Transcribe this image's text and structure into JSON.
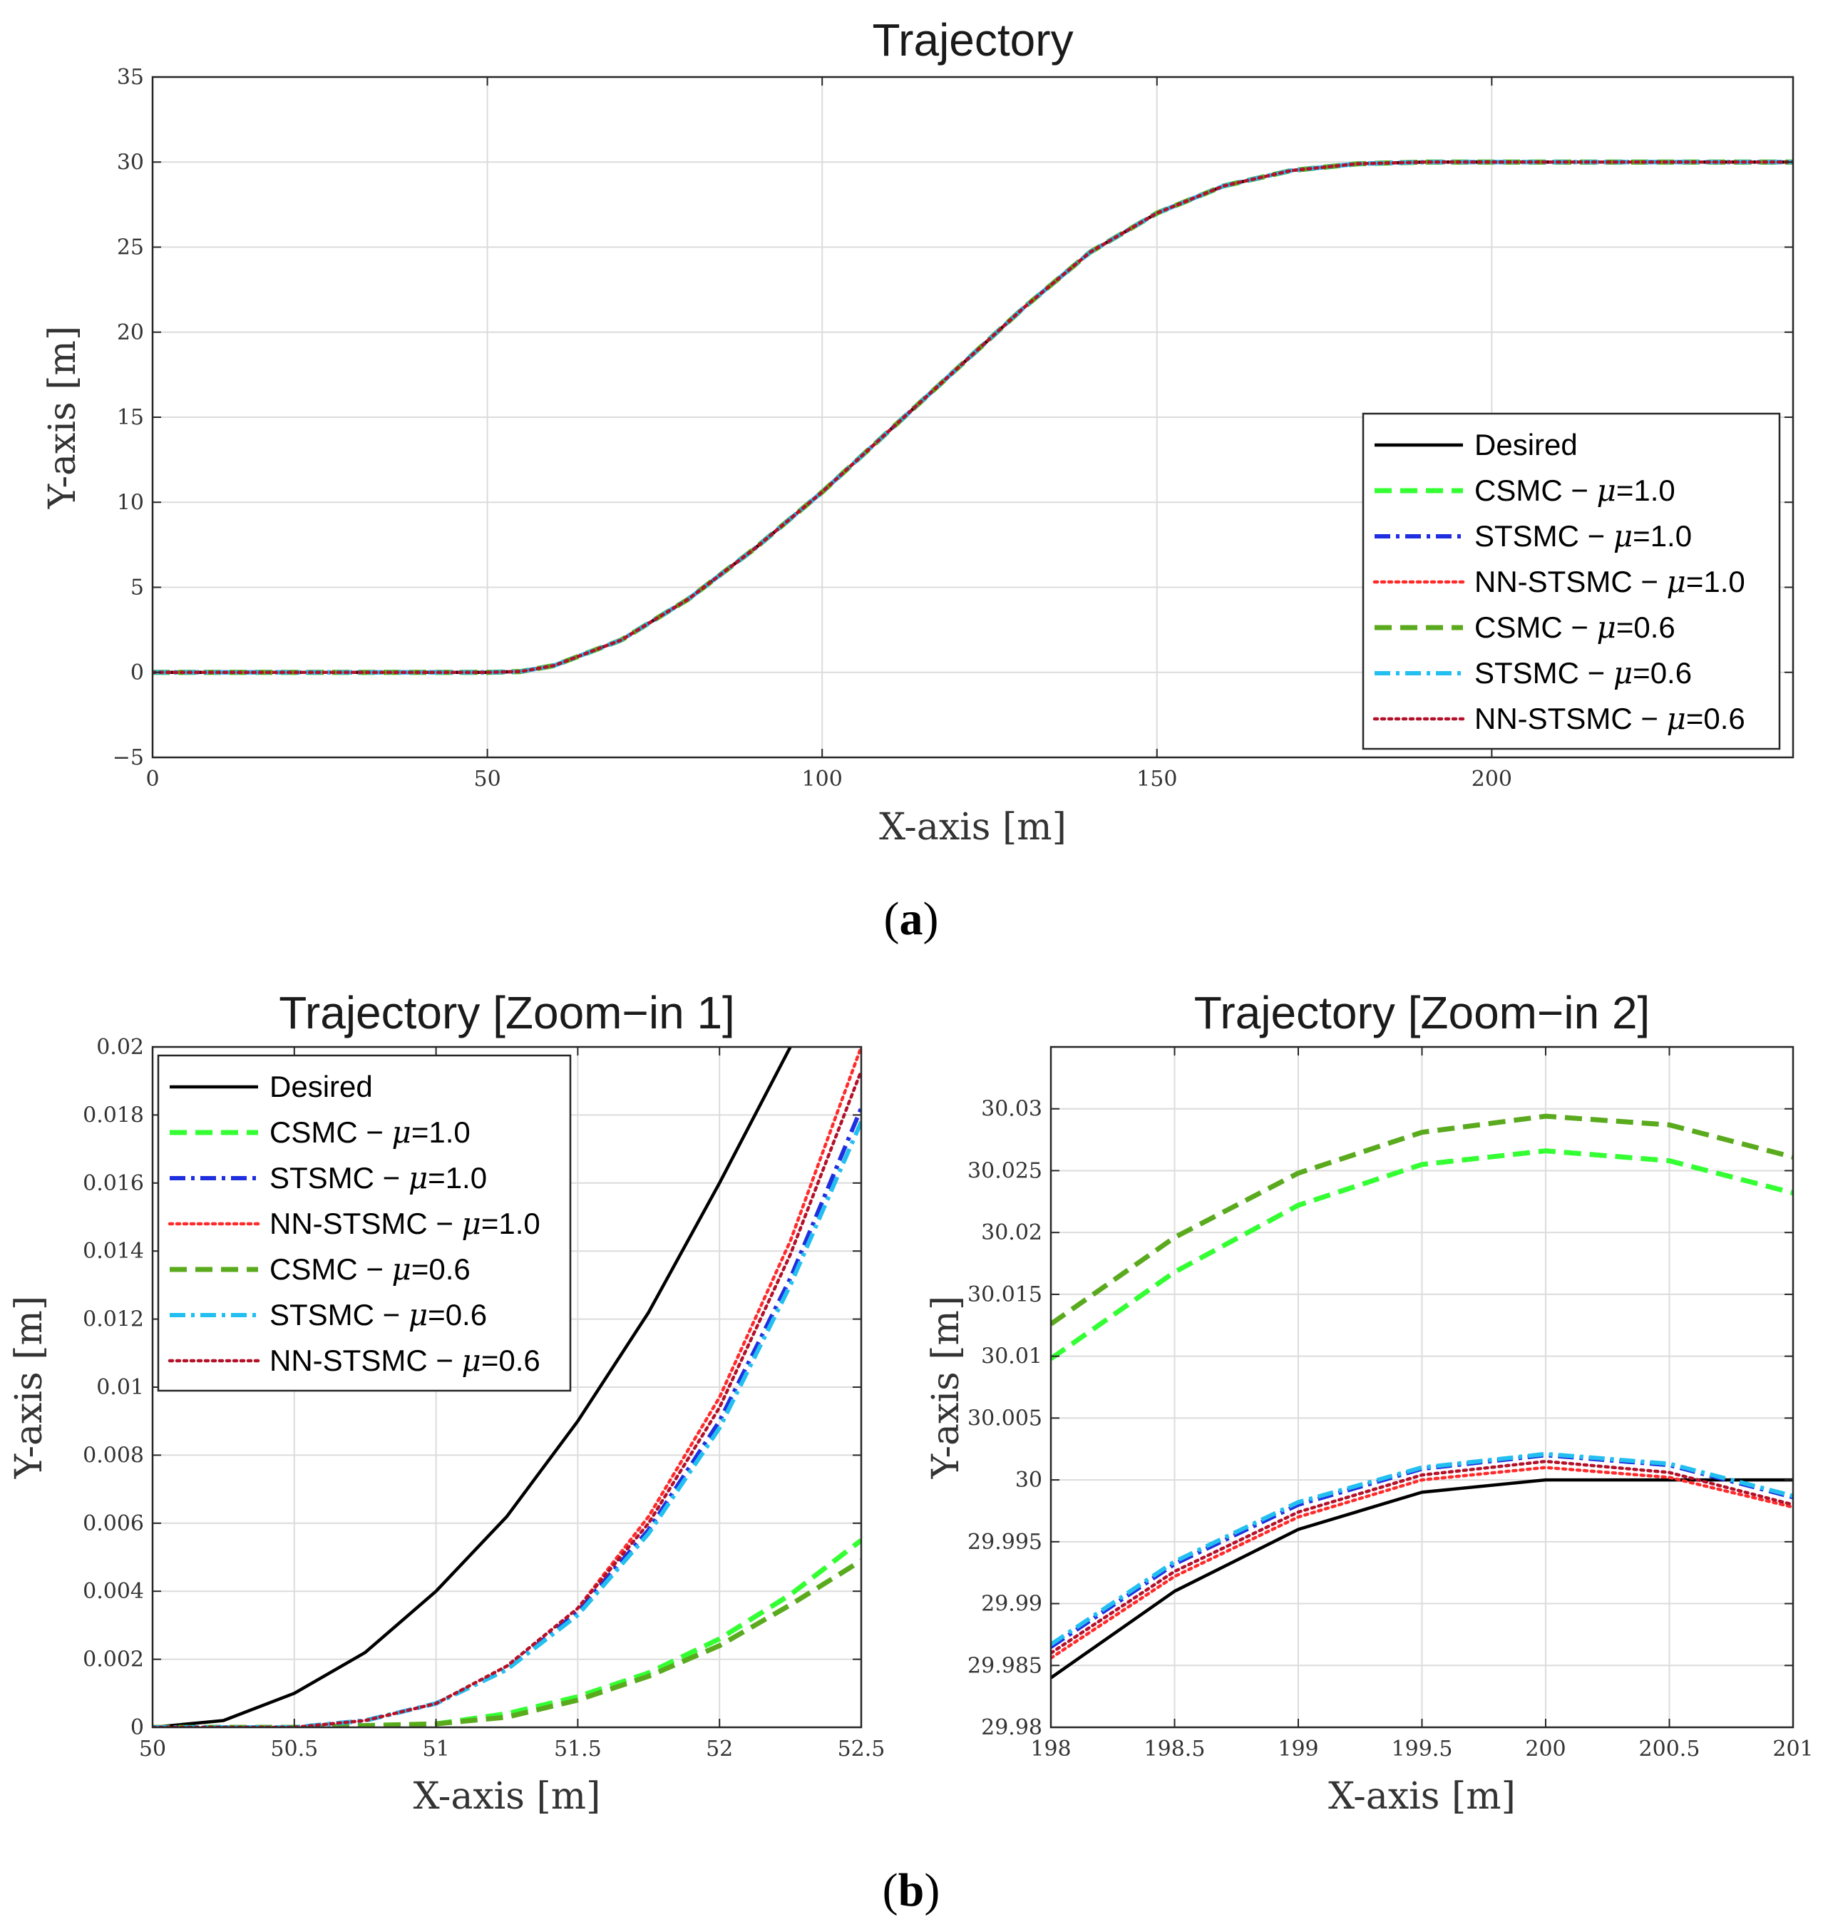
{
  "chart_data": [
    {
      "id": "a",
      "type": "line",
      "title": "Trajectory",
      "xlabel": "X-axis [m]",
      "ylabel": "Y-axis [m]",
      "xlim": [
        0,
        245
      ],
      "ylim": [
        -5,
        35
      ],
      "xticks": [
        0,
        50,
        100,
        150,
        200
      ],
      "yticks": [
        -5,
        0,
        5,
        10,
        15,
        20,
        25,
        30,
        35
      ],
      "xtick_labels": [
        "0",
        "50",
        "100",
        "150",
        "200"
      ],
      "ytick_labels": [
        "−5",
        "0",
        "5",
        "10",
        "15",
        "20",
        "25",
        "30",
        "35"
      ],
      "grid": true,
      "legend_position": "bottom-right",
      "caption": "a",
      "series": [
        {
          "name": "Desired",
          "color": "#000000",
          "style": "solid",
          "x": [
            0,
            50,
            55,
            60,
            70,
            80,
            90,
            100,
            110,
            120,
            125,
            130,
            140,
            150,
            160,
            170,
            180,
            190,
            195,
            200,
            245
          ],
          "y": [
            0,
            0,
            0.05,
            0.4,
            1.9,
            4.3,
            7.3,
            10.6,
            14.2,
            17.8,
            19.6,
            21.4,
            24.7,
            27.0,
            28.6,
            29.5,
            29.9,
            30.0,
            30.0,
            30.0,
            30.0
          ]
        },
        {
          "name": "CSMC − μ=1.0",
          "color": "#33ff33",
          "style": "dashed",
          "x": [
            0,
            50,
            55,
            60,
            70,
            80,
            90,
            100,
            110,
            120,
            125,
            130,
            140,
            150,
            160,
            170,
            180,
            190,
            195,
            200,
            245
          ],
          "y": [
            0,
            0,
            0.05,
            0.4,
            1.9,
            4.3,
            7.3,
            10.6,
            14.2,
            17.8,
            19.6,
            21.4,
            24.7,
            27.0,
            28.6,
            29.5,
            29.9,
            30.0,
            30.0,
            30.0,
            30.0
          ]
        },
        {
          "name": "STSMC − μ=1.0",
          "color": "#1f2fe0",
          "style": "dashdot",
          "x": [
            0,
            50,
            55,
            60,
            70,
            80,
            90,
            100,
            110,
            120,
            125,
            130,
            140,
            150,
            160,
            170,
            180,
            190,
            195,
            200,
            245
          ],
          "y": [
            0,
            0,
            0.05,
            0.4,
            1.9,
            4.3,
            7.3,
            10.6,
            14.2,
            17.8,
            19.6,
            21.4,
            24.7,
            27.0,
            28.6,
            29.5,
            29.9,
            30.0,
            30.0,
            30.0,
            30.0
          ]
        },
        {
          "name": "NN-STSMC − μ=1.0",
          "color": "#ff2b2b",
          "style": "dotted",
          "x": [
            0,
            50,
            55,
            60,
            70,
            80,
            90,
            100,
            110,
            120,
            125,
            130,
            140,
            150,
            160,
            170,
            180,
            190,
            195,
            200,
            245
          ],
          "y": [
            0,
            0,
            0.05,
            0.4,
            1.9,
            4.3,
            7.3,
            10.6,
            14.2,
            17.8,
            19.6,
            21.4,
            24.7,
            27.0,
            28.6,
            29.5,
            29.9,
            30.0,
            30.0,
            30.0,
            30.0
          ]
        },
        {
          "name": "CSMC − μ=0.6",
          "color": "#5aaa1e",
          "style": "dashed",
          "x": [
            0,
            50,
            55,
            60,
            70,
            80,
            90,
            100,
            110,
            120,
            125,
            130,
            140,
            150,
            160,
            170,
            180,
            190,
            195,
            200,
            245
          ],
          "y": [
            0,
            0,
            0.05,
            0.4,
            1.9,
            4.3,
            7.3,
            10.6,
            14.2,
            17.8,
            19.6,
            21.4,
            24.7,
            27.0,
            28.6,
            29.5,
            29.9,
            30.0,
            30.0,
            30.0,
            30.0
          ]
        },
        {
          "name": "STSMC − μ=0.6",
          "color": "#22bff0",
          "style": "dashdot",
          "x": [
            0,
            50,
            55,
            60,
            70,
            80,
            90,
            100,
            110,
            120,
            125,
            130,
            140,
            150,
            160,
            170,
            180,
            190,
            195,
            200,
            245
          ],
          "y": [
            0,
            0,
            0.05,
            0.4,
            1.9,
            4.3,
            7.3,
            10.6,
            14.2,
            17.8,
            19.6,
            21.4,
            24.7,
            27.0,
            28.6,
            29.5,
            29.9,
            30.0,
            30.0,
            30.0,
            30.0
          ]
        },
        {
          "name": "NN-STSMC − μ=0.6",
          "color": "#b3112a",
          "style": "dotted",
          "x": [
            0,
            50,
            55,
            60,
            70,
            80,
            90,
            100,
            110,
            120,
            125,
            130,
            140,
            150,
            160,
            170,
            180,
            190,
            195,
            200,
            245
          ],
          "y": [
            0,
            0,
            0.05,
            0.4,
            1.9,
            4.3,
            7.3,
            10.6,
            14.2,
            17.8,
            19.6,
            21.4,
            24.7,
            27.0,
            28.6,
            29.5,
            29.9,
            30.0,
            30.0,
            30.0,
            30.0
          ]
        }
      ]
    },
    {
      "id": "b1",
      "type": "line",
      "title": "Trajectory [Zoom−in 1]",
      "xlabel": "X-axis [m]",
      "ylabel": "Y-axis [m]",
      "xlim": [
        50,
        52.5
      ],
      "ylim": [
        0,
        0.02
      ],
      "xticks": [
        50,
        50.5,
        51,
        51.5,
        52,
        52.5
      ],
      "yticks": [
        0,
        0.002,
        0.004,
        0.006,
        0.008,
        0.01,
        0.012,
        0.014,
        0.016,
        0.018,
        0.02
      ],
      "xtick_labels": [
        "50",
        "50.5",
        "51",
        "51.5",
        "52",
        "52.5"
      ],
      "ytick_labels": [
        "0",
        "0.002",
        "0.004",
        "0.006",
        "0.008",
        "0.01",
        "0.012",
        "0.014",
        "0.016",
        "0.018",
        "0.02"
      ],
      "grid": true,
      "legend_position": "top-left",
      "series": [
        {
          "name": "Desired",
          "color": "#000000",
          "style": "solid",
          "x": [
            50,
            50.25,
            50.5,
            50.75,
            51,
            51.25,
            51.5,
            51.75,
            52,
            52.25
          ],
          "y": [
            0,
            0.0002,
            0.001,
            0.0022,
            0.004,
            0.0062,
            0.009,
            0.0122,
            0.016,
            0.02
          ]
        },
        {
          "name": "CSMC − μ=1.0",
          "color": "#33ff33",
          "style": "dashed",
          "x": [
            50,
            50.5,
            51,
            51.25,
            51.5,
            51.75,
            52,
            52.25,
            52.5
          ],
          "y": [
            0,
            0,
            0.0001,
            0.0004,
            0.0009,
            0.0016,
            0.0026,
            0.0039,
            0.0055
          ]
        },
        {
          "name": "STSMC − μ=1.0",
          "color": "#1f2fe0",
          "style": "dashdot",
          "x": [
            50,
            50.5,
            50.75,
            51,
            51.25,
            51.5,
            51.75,
            52,
            52.25,
            52.5
          ],
          "y": [
            0,
            0,
            0.0002,
            0.0007,
            0.0017,
            0.0034,
            0.0058,
            0.009,
            0.0132,
            0.0182
          ]
        },
        {
          "name": "NN-STSMC − μ=1.0",
          "color": "#ff2b2b",
          "style": "dotted",
          "x": [
            50,
            50.5,
            50.75,
            51,
            51.25,
            51.5,
            51.75,
            52,
            52.25,
            52.5
          ],
          "y": [
            0,
            0,
            0.0002,
            0.0007,
            0.0018,
            0.0035,
            0.0062,
            0.0097,
            0.0143,
            0.02
          ]
        },
        {
          "name": "CSMC − μ=0.6",
          "color": "#5aaa1e",
          "style": "dashed",
          "x": [
            50,
            50.5,
            51,
            51.25,
            51.5,
            51.75,
            52,
            52.25,
            52.5
          ],
          "y": [
            0,
            0,
            0.0001,
            0.0003,
            0.0008,
            0.0015,
            0.0024,
            0.0036,
            0.0049
          ]
        },
        {
          "name": "STSMC − μ=0.6",
          "color": "#22bff0",
          "style": "dashdot",
          "x": [
            50,
            50.5,
            50.75,
            51,
            51.25,
            51.5,
            51.75,
            52,
            52.25,
            52.5
          ],
          "y": [
            0,
            0,
            0.0002,
            0.0007,
            0.0017,
            0.0033,
            0.0057,
            0.0088,
            0.013,
            0.0178
          ]
        },
        {
          "name": "NN-STSMC − μ=0.6",
          "color": "#b3112a",
          "style": "dotted",
          "x": [
            50,
            50.5,
            50.75,
            51,
            51.25,
            51.5,
            51.75,
            52,
            52.25,
            52.5
          ],
          "y": [
            0,
            0,
            0.0002,
            0.0007,
            0.0018,
            0.0035,
            0.006,
            0.0094,
            0.0139,
            0.0193
          ]
        }
      ]
    },
    {
      "id": "b2",
      "type": "line",
      "title": "Trajectory [Zoom−in 2]",
      "xlabel": "X-axis [m]",
      "ylabel": "Y-axis [m]",
      "xlim": [
        198,
        201
      ],
      "ylim": [
        29.98,
        30.035
      ],
      "xticks": [
        198,
        198.5,
        199,
        199.5,
        200,
        200.5,
        201
      ],
      "yticks": [
        29.98,
        29.985,
        29.99,
        29.995,
        30,
        30.005,
        30.01,
        30.015,
        30.02,
        30.025,
        30.03
      ],
      "xtick_labels": [
        "198",
        "198.5",
        "199",
        "199.5",
        "200",
        "200.5",
        "201"
      ],
      "ytick_labels": [
        "29.98",
        "29.985",
        "29.99",
        "29.995",
        "30",
        "30.005",
        "30.01",
        "30.015",
        "30.02",
        "30.025",
        "30.03"
      ],
      "grid": true,
      "legend_position": "none",
      "caption": "b",
      "series": [
        {
          "name": "Desired",
          "color": "#000000",
          "style": "solid",
          "x": [
            198,
            198.5,
            199,
            199.5,
            200,
            200.5,
            201
          ],
          "y": [
            29.984,
            29.991,
            29.996,
            29.999,
            30.0,
            30.0,
            30.0
          ]
        },
        {
          "name": "CSMC − μ=1.0",
          "color": "#33ff33",
          "style": "dashed",
          "x": [
            198,
            198.5,
            199,
            199.5,
            200,
            200.5,
            201
          ],
          "y": [
            30.0098,
            30.0168,
            30.0222,
            30.0255,
            30.0266,
            30.0258,
            30.0232
          ]
        },
        {
          "name": "STSMC − μ=1.0",
          "color": "#1f2fe0",
          "style": "dashdot",
          "x": [
            198,
            198.5,
            199,
            199.5,
            200,
            200.5,
            201
          ],
          "y": [
            29.9865,
            29.9932,
            29.998,
            30.0009,
            30.002,
            30.0012,
            29.9986
          ]
        },
        {
          "name": "NN-STSMC − μ=1.0",
          "color": "#ff2b2b",
          "style": "dotted",
          "x": [
            198,
            198.5,
            199,
            199.5,
            200,
            200.5,
            201
          ],
          "y": [
            29.9856,
            29.9922,
            29.997,
            30.0,
            30.001,
            30.0002,
            29.9978
          ]
        },
        {
          "name": "CSMC − μ=0.6",
          "color": "#5aaa1e",
          "style": "dashed",
          "x": [
            198,
            198.5,
            199,
            199.5,
            200,
            200.5,
            201
          ],
          "y": [
            30.0126,
            30.0196,
            30.0248,
            30.0281,
            30.0294,
            30.0287,
            30.0261
          ]
        },
        {
          "name": "STSMC − μ=0.6",
          "color": "#22bff0",
          "style": "dashdot",
          "x": [
            198,
            198.5,
            199,
            199.5,
            200,
            200.5,
            201
          ],
          "y": [
            29.9867,
            29.9934,
            29.9982,
            30.001,
            30.0021,
            30.0013,
            29.9987
          ]
        },
        {
          "name": "NN-STSMC − μ=0.6",
          "color": "#b3112a",
          "style": "dotted",
          "x": [
            198,
            198.5,
            199,
            199.5,
            200,
            200.5,
            201
          ],
          "y": [
            29.986,
            29.9926,
            29.9974,
            30.0004,
            30.0015,
            30.0006,
            29.998
          ]
        }
      ]
    }
  ]
}
